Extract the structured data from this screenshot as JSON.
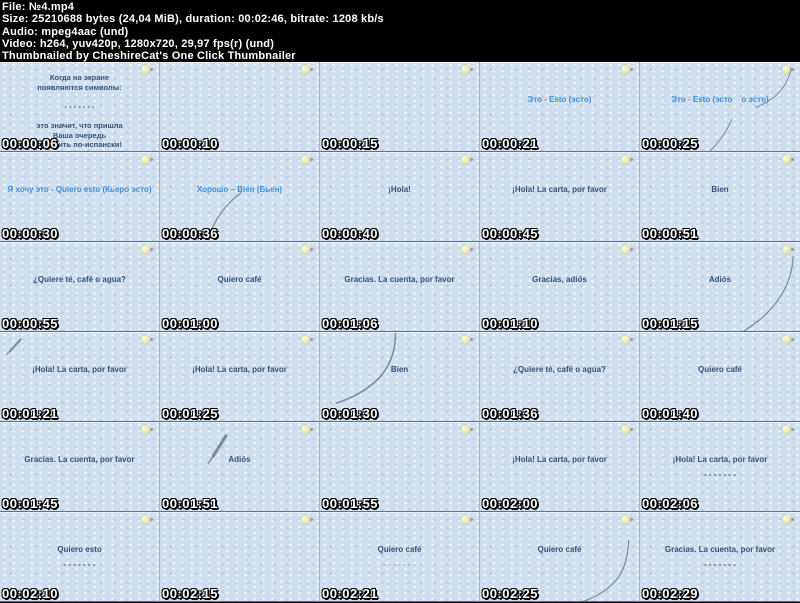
{
  "header": {
    "file": "File: №4.mp4",
    "size": "Size: 25210688 bytes (24,04 MiB), duration: 00:02:46, bitrate: 1208 kb/s",
    "audio": "Audio: mpeg4aac (und)",
    "video": "Video: h264, yuv420p, 1280x720, 29,97 fps(r) (und)",
    "credit": "Thumbnailed by CheshireCat's One Click Thumbnailer"
  },
  "colors": {
    "header_bg": "#000000",
    "header_text": "#ffffff",
    "cell_bg": "#d1deee",
    "navy_text": "#33517d",
    "blue_text": "#3e8ed8",
    "timestamp_fill": "#ffffff",
    "timestamp_outline": "#000000",
    "sun_icon": "#e9e9ac",
    "stroke_decor": "#5d6b80"
  },
  "icons": {
    "corner": "sun-icon",
    "pen": "pencil-icon"
  },
  "grid": {
    "columns": 5,
    "rows": 6,
    "cells": [
      {
        "time": "00:00:06",
        "style": "navy",
        "small": true,
        "lines": [
          "Когда на экране",
          "появляются символы:",
          "",
          "- - - - - - -",
          "",
          "это значит, что пришла",
          "Ваша очередь",
          "говорить по-испански!"
        ]
      },
      {
        "time": "00:00:10",
        "lines": []
      },
      {
        "time": "00:00:15",
        "lines": []
      },
      {
        "time": "00:00:21",
        "style": "blue",
        "lines": [
          "Это - Esto (эсто)"
        ]
      },
      {
        "time": "00:00:25",
        "style": "blue",
        "lines": [
          "Это - Esto (эсто    о эсто)"
        ],
        "decor": [
          "curve-tr"
        ]
      },
      {
        "time": "00:00:30",
        "style": "blue",
        "lines": [
          "Я хочу это - Quiero esto (Кьеро эсто)"
        ]
      },
      {
        "time": "00:00:36",
        "style": "blue",
        "lines": [
          "Хорошо – Bien (Бьен)"
        ],
        "decor": [
          "curve-under"
        ]
      },
      {
        "time": "00:00:40",
        "style": "navy",
        "lines": [
          "¡Hola!"
        ]
      },
      {
        "time": "00:00:45",
        "style": "navy",
        "lines": [
          "¡Hola! La carta, por favor"
        ]
      },
      {
        "time": "00:00:51",
        "style": "navy",
        "lines": [
          "Bien"
        ]
      },
      {
        "time": "00:00:55",
        "style": "navy",
        "lines": [
          "¿Quiere té, café o agua?"
        ]
      },
      {
        "time": "00:01:00",
        "style": "navy",
        "lines": [
          "Quiero café"
        ]
      },
      {
        "time": "00:01:06",
        "style": "navy",
        "lines": [
          "Gracias. La cuenta, por favor"
        ]
      },
      {
        "time": "00:01:10",
        "style": "navy",
        "lines": [
          "Gracias, adiós"
        ]
      },
      {
        "time": "00:01:15",
        "style": "navy",
        "lines": [
          "Adiós"
        ],
        "decor": [
          "curve-right"
        ]
      },
      {
        "time": "00:01:21",
        "style": "navy",
        "lines": [
          "¡Hola! La carta, por favor"
        ],
        "decor": [
          "pen-small-tl"
        ]
      },
      {
        "time": "00:01:25",
        "style": "navy",
        "lines": [
          "¡Hola! La carta, por favor"
        ]
      },
      {
        "time": "00:01:30",
        "style": "navy",
        "lines": [
          "Bien"
        ],
        "decor": [
          "arc-left"
        ]
      },
      {
        "time": "00:01:36",
        "style": "navy",
        "lines": [
          "¿Quiere té, café o agua?"
        ]
      },
      {
        "time": "00:01:40",
        "style": "navy",
        "lines": [
          "Quiero café"
        ]
      },
      {
        "time": "00:01:45",
        "style": "navy",
        "lines": [
          "Gracias. La cuenta, por favor"
        ]
      },
      {
        "time": "00:01:51",
        "style": "navy",
        "lines": [
          "Adiós"
        ],
        "decor": [
          "pen-top"
        ]
      },
      {
        "time": "00:01:55",
        "lines": []
      },
      {
        "time": "00:02:00",
        "style": "navy",
        "lines": [
          "¡Hola! La carta, por favor"
        ]
      },
      {
        "time": "00:02:06",
        "style": "navy",
        "lines": [
          "¡Hola! La carta, por favor",
          "- - - - - - -"
        ]
      },
      {
        "time": "00:02:10",
        "style": "navy",
        "lines": [
          "Quiero esto",
          "- - - - - - -"
        ]
      },
      {
        "time": "00:02:15",
        "lines": []
      },
      {
        "time": "00:02:21",
        "style": "navy",
        "lines": [
          "Quiero café",
          "- - - - - - -"
        ],
        "faint_last": true
      },
      {
        "time": "00:02:25",
        "style": "navy",
        "lines": [
          "Quiero café"
        ],
        "decor": [
          "curve-br"
        ]
      },
      {
        "time": "00:02:29",
        "style": "navy",
        "lines": [
          "Gracias. La cuenta, por favor",
          "- - - - - - -"
        ]
      }
    ]
  }
}
